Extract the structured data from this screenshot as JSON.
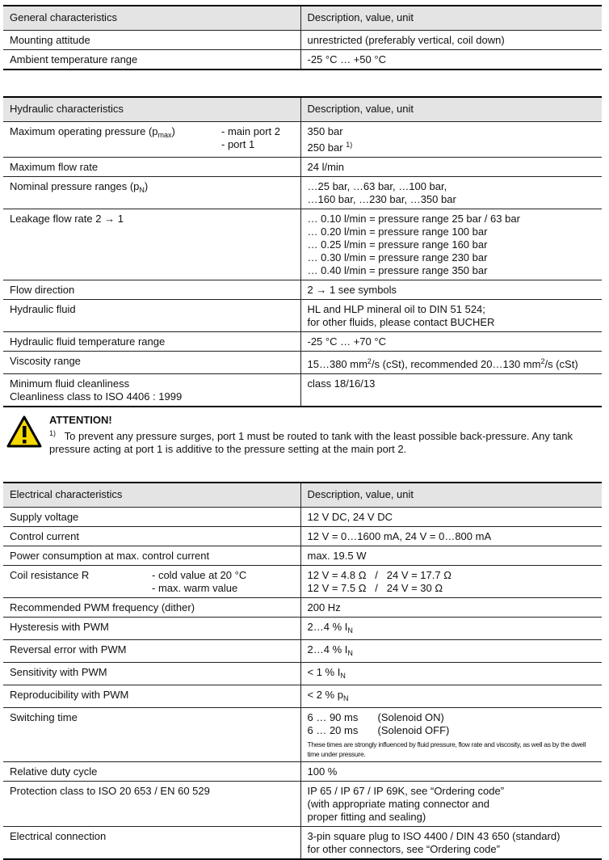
{
  "general": {
    "header": [
      "General characteristics",
      "Description, value, unit"
    ],
    "rows": [
      {
        "label": "Mounting attitude",
        "value": "unrestricted (preferably vertical, coil down)"
      },
      {
        "label": "Ambient temperature range",
        "value": "-25 °C … +50 °C"
      }
    ]
  },
  "hydraulic": {
    "header": [
      "Hydraulic characteristics",
      "Description, value, unit"
    ],
    "max_pressure": {
      "label_pre": "Maximum operating pressure (p",
      "label_sub": "max",
      "label_post": ")",
      "port_main": "- main port 2",
      "port_1": "- port 1",
      "value_main": "350 bar",
      "value_1": "250 bar",
      "footnote_ref": "1)"
    },
    "max_flow": {
      "label": "Maximum flow rate",
      "value": "24 l/min"
    },
    "nominal": {
      "label_pre": "Nominal pressure ranges (p",
      "label_sub": "N",
      "label_post": ")",
      "lines": [
        "…25 bar, …63 bar, …100 bar,",
        "…160 bar, …230 bar, …350 bar"
      ]
    },
    "leakage": {
      "label": "Leakage flow rate 2 → 1",
      "lines": [
        "… 0.10 l/min  = pressure range 25 bar / 63 bar",
        "… 0.20 l/min  = pressure range 100 bar",
        "… 0.25 l/min  = pressure range 160 bar",
        "… 0.30 l/min  = pressure range 230 bar",
        "… 0.40 l/min  = pressure range 350 bar"
      ]
    },
    "flow_direction": {
      "label": "Flow direction",
      "value": "2 → 1  see symbols"
    },
    "fluid": {
      "label": "Hydraulic fluid",
      "lines": [
        "HL and HLP mineral oil to DIN 51 524;",
        "for other fluids, please contact BUCHER"
      ]
    },
    "fluid_temp": {
      "label": "Hydraulic fluid temperature range",
      "value": "-25 °C … +70 °C"
    },
    "viscosity": {
      "label": "Viscosity range",
      "v1": "15…380 mm",
      "sup1": "2",
      "v2": "/s (cSt), recommended 20…130 mm",
      "sup2": "2",
      "v3": "/s (cSt)"
    },
    "cleanliness": {
      "label_lines": [
        "Minimum fluid cleanliness",
        "Cleanliness class to ISO 4406 : 1999"
      ],
      "value": "class 18/16/13"
    }
  },
  "attention": {
    "title": "ATTENTION!",
    "ref": "1)",
    "text": "To prevent any pressure surges, port 1 must be routed to tank with the least possible back-pressure. Any tank pressure acting at port 1 is additive to the pressure setting at the main port 2.",
    "icon": "warning-triangle-icon",
    "icon_color": "#f5d800"
  },
  "electrical": {
    "header": [
      "Electrical characteristics",
      "Description, value, unit"
    ],
    "supply": {
      "label": "Supply voltage",
      "value": "12 V DC, 24 V DC"
    },
    "control": {
      "label": "Control current",
      "value": "12 V = 0…1600 mA, 24 V = 0…800 mA"
    },
    "power": {
      "label": "Power consumption at max. control current",
      "value": "max. 19.5 W"
    },
    "coil": {
      "label": "Coil resistance R",
      "cond1": "- cold value at 20 °C",
      "cond2": "- max. warm value",
      "v1": "12 V = 4.8 Ω   /   24 V = 17.7 Ω",
      "v2": "12 V = 7.5 Ω   /   24 V = 30 Ω"
    },
    "pwm_freq": {
      "label": "Recommended PWM frequency (dither)",
      "value": "200 Hz"
    },
    "hysteresis": {
      "label": "Hysteresis with PWM",
      "value": "2…4 % I",
      "sub": "N"
    },
    "reversal": {
      "label": "Reversal error with PWM",
      "value": "2…4 % I",
      "sub": "N"
    },
    "sensitivity": {
      "label": "Sensitivity with PWM",
      "value": "< 1 % I",
      "sub": "N"
    },
    "reproducibility": {
      "label": "Reproducibility with PWM",
      "value": "< 2 % p",
      "sub": "N"
    },
    "switching": {
      "label": "Switching time",
      "t1": "6 … 90 ms",
      "s1": "(Solenoid ON)",
      "t2": "6 … 20 ms",
      "s2": "(Solenoid OFF)",
      "note": "These times are strongly influenced by fluid pressure, flow rate and viscosity, as well as by the dwell time under pressure."
    },
    "duty": {
      "label": "Relative duty cycle",
      "value": "100 %"
    },
    "protection": {
      "label": "Protection class to ISO 20 653 / EN 60 529",
      "lines": [
        "IP 65 / IP 67 / IP 69K, see “Ordering code”",
        "(with appropriate mating connector and",
        "proper fitting and sealing)"
      ]
    },
    "connection": {
      "label": "Electrical connection",
      "lines": [
        "3-pin square plug to ISO 4400 / DIN 43 650 (standard)",
        "for other connectors, see “Ordering code”"
      ]
    }
  }
}
